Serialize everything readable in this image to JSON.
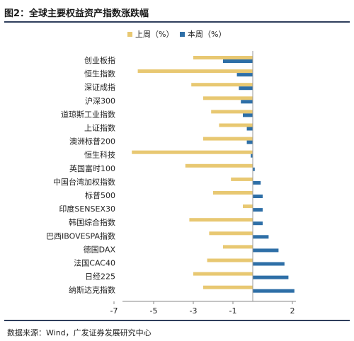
{
  "title": "图2：全球主要权益资产指数涨跌幅",
  "source": "数据来源：Wind，广发证券发展研究中心",
  "colors": {
    "last_week": "#E8C872",
    "this_week": "#2E6FA7",
    "rule": "#2f3e5c"
  },
  "chart_data": {
    "type": "bar",
    "orientation": "horizontal",
    "categories": [
      "创业板指",
      "恒生指数",
      "深证成指",
      "沪深300",
      "道琼斯工业指数",
      "上证指数",
      "澳洲标普200",
      "恒生科技",
      "英国富时100",
      "中国台湾加权指数",
      "标普500",
      "印度SENSEX30",
      "韩国综合指数",
      "巴西IBOVESPA指数",
      "德国DAX",
      "法国CAC40",
      "日经225",
      "纳斯达克指数"
    ],
    "series": [
      {
        "name": "上周（%）",
        "values": [
          -3.0,
          -5.8,
          -3.1,
          -2.5,
          -2.1,
          -1.7,
          -2.5,
          -6.1,
          -3.4,
          -1.1,
          -2.0,
          -0.5,
          -3.2,
          -2.2,
          -1.5,
          -2.3,
          -3.0,
          -2.5
        ]
      },
      {
        "name": "本周（%）",
        "values": [
          -1.5,
          -0.8,
          -0.7,
          -0.6,
          -0.5,
          -0.3,
          -0.3,
          -0.1,
          0.1,
          0.4,
          0.5,
          0.5,
          0.5,
          0.8,
          1.3,
          1.6,
          1.8,
          2.1
        ]
      }
    ],
    "xlim": [
      -7,
      2.6
    ],
    "xticks": [
      -7,
      -5,
      -3,
      -1,
      2
    ],
    "legend_position": "top-center",
    "grid": false
  }
}
